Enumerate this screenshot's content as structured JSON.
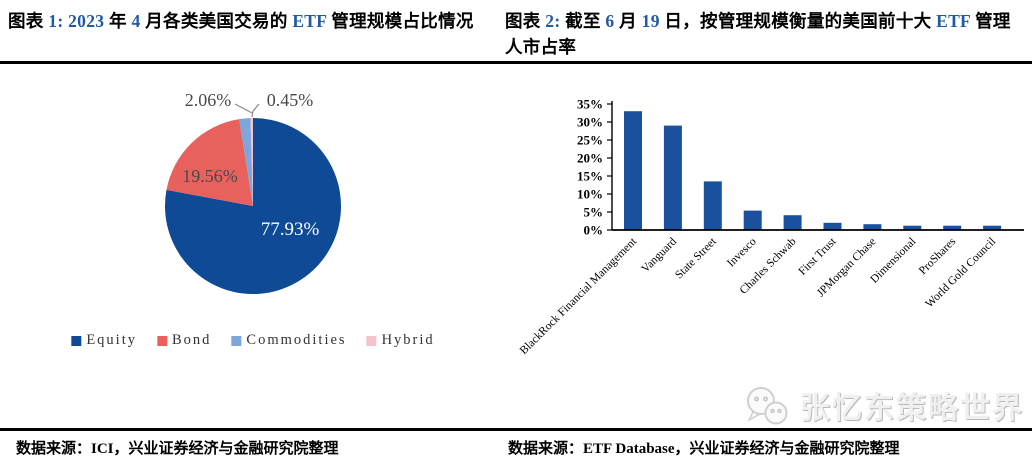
{
  "accent_color": "#1F5AA8",
  "fig1": {
    "heading_parts": [
      {
        "t": "图表 ",
        "a": false
      },
      {
        "t": "1: 2023",
        "a": true
      },
      {
        "t": " 年 ",
        "a": false
      },
      {
        "t": "4",
        "a": true
      },
      {
        "t": " 月各类美国交易的 ",
        "a": false
      },
      {
        "t": "ETF",
        "a": true
      },
      {
        "t": " 管理规模占比情况",
        "a": false
      }
    ],
    "source_label": "数据来源：",
    "source_text": "ICI，兴业证券经济与金融研究院整理"
  },
  "fig2": {
    "heading_parts": [
      {
        "t": "图表 ",
        "a": false
      },
      {
        "t": "2: ",
        "a": true
      },
      {
        "t": "截至 ",
        "a": false
      },
      {
        "t": "6",
        "a": true
      },
      {
        "t": " 月 ",
        "a": false
      },
      {
        "t": "19",
        "a": true
      },
      {
        "t": " 日，按管理规模衡量的美国前十大 ",
        "a": false
      },
      {
        "t": "ETF",
        "a": true
      },
      {
        "t": " 管理人市占率",
        "a": false
      }
    ],
    "source_label": "数据来源：",
    "source_text": "ETF Database，兴业证券经济与金融研究院整理"
  },
  "watermark": {
    "text": "张忆东策略世界",
    "icon": "wechat-icon"
  },
  "chart_data": [
    {
      "type": "pie",
      "title": "图表 1: 2023 年 4 月各类美国交易的 ETF 管理规模占比情况",
      "labels": [
        "Equity",
        "Bond",
        "Commodities",
        "Hybrid"
      ],
      "values": [
        77.93,
        19.56,
        2.06,
        0.45
      ],
      "value_labels": [
        "77.93%",
        "19.56%",
        "2.06%",
        "0.45%"
      ],
      "colors": [
        "#0E4A96",
        "#E8615D",
        "#7FA6DC",
        "#F5C3CC"
      ],
      "start_angle_deg": 0,
      "direction": "clockwise",
      "legend_position": "bottom"
    },
    {
      "type": "bar",
      "title": "图表 2: 截至 6 月 19 日，按管理规模衡量的美国前十大 ETF 管理人市占率",
      "categories": [
        "BlackRock Financial Management",
        "Vanguard",
        "State Street",
        "Invesco",
        "Charles Schwab",
        "First Trust",
        "JPMorgan Chase",
        "Dimensional",
        "ProShares",
        "World Gold Council"
      ],
      "values": [
        33,
        29,
        13.5,
        5.4,
        4.1,
        2.0,
        1.6,
        1.2,
        1.2,
        1.2
      ],
      "bar_color": "#1A519F",
      "xlabel": "",
      "ylabel": "",
      "ylim": [
        0,
        35
      ],
      "ytick_step": 5,
      "ytick_labels": [
        "0%",
        "5%",
        "10%",
        "15%",
        "20%",
        "25%",
        "30%",
        "35%"
      ],
      "grid": false,
      "xtick_rotation_deg": 45
    }
  ]
}
